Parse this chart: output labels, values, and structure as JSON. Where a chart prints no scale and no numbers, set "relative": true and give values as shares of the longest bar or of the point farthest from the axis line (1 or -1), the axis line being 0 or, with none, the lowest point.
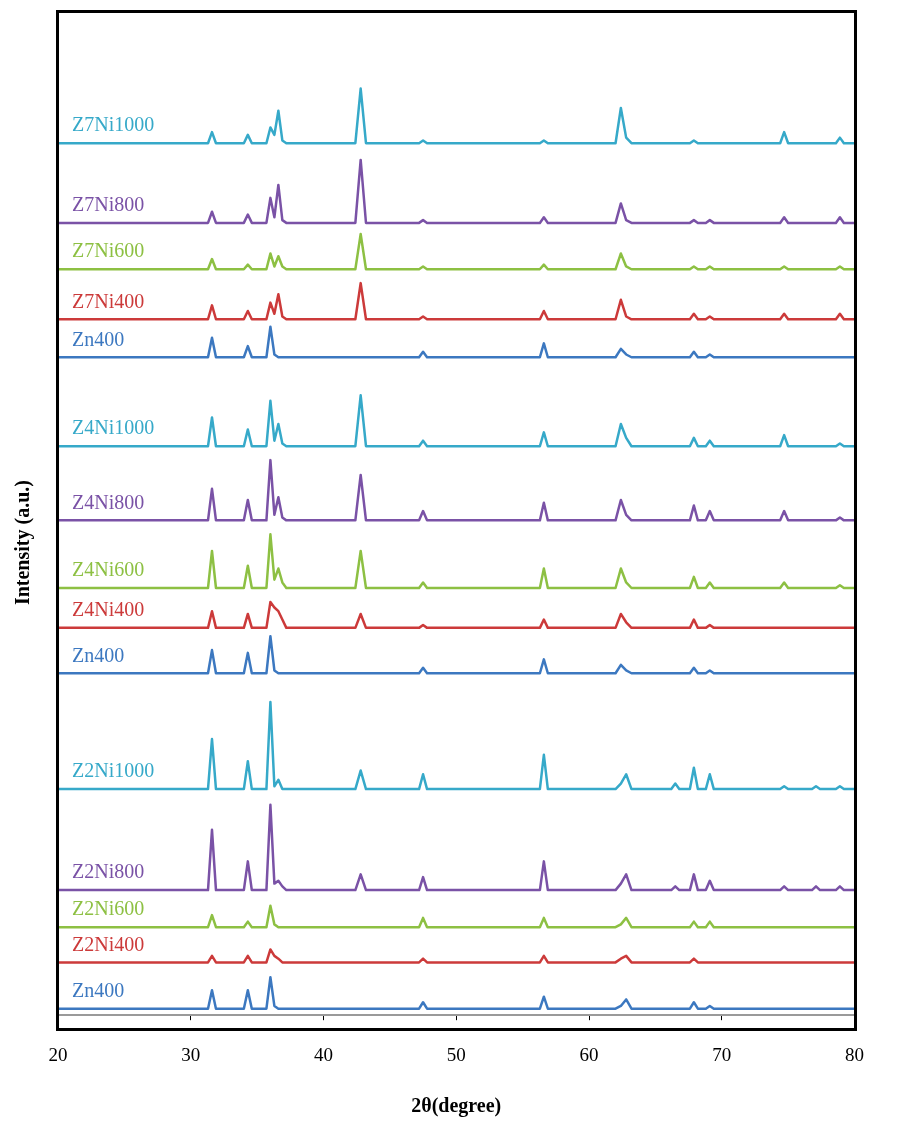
{
  "chart_data": {
    "type": "line",
    "relative": true,
    "xlim": [
      20,
      80
    ],
    "xticks": [
      20,
      30,
      40,
      50,
      60,
      70,
      80
    ],
    "xlabel": "2θ(degree)",
    "ylabel": "Intensity (a.u.)",
    "x": [
      20,
      31.3,
      31.6,
      31.9,
      34.0,
      34.3,
      34.6,
      35.7,
      36.0,
      36.3,
      36.6,
      36.9,
      37.2,
      42.4,
      42.8,
      43.2,
      47.2,
      47.5,
      47.8,
      56.3,
      56.6,
      56.9,
      62.0,
      62.4,
      62.8,
      63.2,
      66.2,
      66.5,
      66.8,
      67.6,
      67.9,
      68.2,
      68.8,
      69.1,
      69.4,
      74.4,
      74.7,
      75.0,
      76.8,
      77.1,
      77.4,
      78.6,
      78.9,
      79.2,
      80
    ],
    "series": [
      {
        "name": "Z7Ni1000",
        "color": "#36a9c9",
        "values": [
          0.941,
          0.941,
          0.953,
          0.941,
          0.941,
          0.95,
          0.941,
          0.941,
          0.958,
          0.95,
          0.976,
          0.944,
          0.941,
          0.941,
          1,
          0.941,
          0.941,
          0.944,
          0.941,
          0.941,
          0.944,
          0.941,
          0.941,
          0.979,
          0.947,
          0.941,
          0.941,
          0.941,
          0.941,
          0.941,
          0.944,
          0.941,
          0.941,
          0.941,
          0.941,
          0.941,
          0.953,
          0.941,
          0.941,
          0.941,
          0.941,
          0.941,
          0.947,
          0.941,
          0.941
        ]
      },
      {
        "name": "Z7Ni800",
        "color": "#7a52a6",
        "values": [
          0.855,
          0.855,
          0.867,
          0.855,
          0.855,
          0.864,
          0.855,
          0.855,
          0.882,
          0.861,
          0.896,
          0.858,
          0.855,
          0.855,
          0.923,
          0.855,
          0.855,
          0.858,
          0.855,
          0.855,
          0.861,
          0.855,
          0.855,
          0.876,
          0.858,
          0.855,
          0.855,
          0.855,
          0.855,
          0.855,
          0.858,
          0.855,
          0.855,
          0.858,
          0.855,
          0.855,
          0.861,
          0.855,
          0.855,
          0.855,
          0.855,
          0.855,
          0.861,
          0.855,
          0.855
        ]
      },
      {
        "name": "Z7Ni600",
        "color": "#8dc043",
        "values": [
          0.805,
          0.805,
          0.816,
          0.805,
          0.805,
          0.81,
          0.805,
          0.805,
          0.822,
          0.808,
          0.819,
          0.808,
          0.805,
          0.805,
          0.843,
          0.805,
          0.805,
          0.808,
          0.805,
          0.805,
          0.81,
          0.805,
          0.805,
          0.822,
          0.808,
          0.805,
          0.805,
          0.805,
          0.805,
          0.805,
          0.808,
          0.805,
          0.805,
          0.808,
          0.805,
          0.805,
          0.808,
          0.805,
          0.805,
          0.805,
          0.805,
          0.805,
          0.808,
          0.805,
          0.805
        ]
      },
      {
        "name": "Z7Ni400",
        "color": "#cc3a3a",
        "values": [
          0.751,
          0.751,
          0.766,
          0.751,
          0.751,
          0.76,
          0.751,
          0.751,
          0.769,
          0.757,
          0.778,
          0.754,
          0.751,
          0.751,
          0.79,
          0.751,
          0.751,
          0.754,
          0.751,
          0.751,
          0.76,
          0.751,
          0.751,
          0.772,
          0.754,
          0.751,
          0.751,
          0.751,
          0.751,
          0.751,
          0.757,
          0.751,
          0.751,
          0.754,
          0.751,
          0.751,
          0.757,
          0.751,
          0.751,
          0.751,
          0.751,
          0.751,
          0.757,
          0.751,
          0.751
        ]
      },
      {
        "name": "Zn400",
        "color": "#3c78c0",
        "values": [
          0.71,
          0.71,
          0.731,
          0.71,
          0.71,
          0.722,
          0.71,
          0.71,
          0.743,
          0.713,
          0.71,
          0.71,
          0.71,
          0.71,
          0.71,
          0.71,
          0.71,
          0.716,
          0.71,
          0.71,
          0.725,
          0.71,
          0.71,
          0.719,
          0.713,
          0.71,
          0.71,
          0.71,
          0.71,
          0.71,
          0.716,
          0.71,
          0.71,
          0.713,
          0.71,
          0.71,
          0.71,
          0.71,
          0.71,
          0.71,
          0.71,
          0.71,
          0.71,
          0.71,
          0.71
        ]
      },
      {
        "name": "Z4Ni1000",
        "color": "#36a9c9",
        "values": [
          0.614,
          0.614,
          0.645,
          0.614,
          0.614,
          0.632,
          0.614,
          0.614,
          0.663,
          0.62,
          0.638,
          0.617,
          0.614,
          0.614,
          0.669,
          0.614,
          0.614,
          0.62,
          0.614,
          0.614,
          0.629,
          0.614,
          0.614,
          0.638,
          0.623,
          0.614,
          0.614,
          0.614,
          0.614,
          0.614,
          0.623,
          0.614,
          0.614,
          0.62,
          0.614,
          0.614,
          0.626,
          0.614,
          0.614,
          0.614,
          0.614,
          0.614,
          0.617,
          0.614,
          0.614
        ]
      },
      {
        "name": "Z4Ni800",
        "color": "#7a52a6",
        "values": [
          0.534,
          0.534,
          0.568,
          0.534,
          0.534,
          0.556,
          0.534,
          0.534,
          0.599,
          0.54,
          0.559,
          0.537,
          0.534,
          0.534,
          0.583,
          0.534,
          0.534,
          0.544,
          0.534,
          0.534,
          0.553,
          0.534,
          0.534,
          0.556,
          0.54,
          0.534,
          0.534,
          0.534,
          0.534,
          0.534,
          0.55,
          0.534,
          0.534,
          0.544,
          0.534,
          0.534,
          0.544,
          0.534,
          0.534,
          0.534,
          0.534,
          0.534,
          0.537,
          0.534,
          0.534
        ]
      },
      {
        "name": "Z4Ni600",
        "color": "#8dc043",
        "values": [
          0.461,
          0.461,
          0.501,
          0.461,
          0.461,
          0.485,
          0.461,
          0.461,
          0.519,
          0.47,
          0.482,
          0.467,
          0.461,
          0.461,
          0.501,
          0.461,
          0.461,
          0.467,
          0.461,
          0.461,
          0.482,
          0.461,
          0.461,
          0.482,
          0.467,
          0.461,
          0.461,
          0.461,
          0.461,
          0.461,
          0.473,
          0.461,
          0.461,
          0.467,
          0.461,
          0.461,
          0.467,
          0.461,
          0.461,
          0.461,
          0.461,
          0.461,
          0.464,
          0.461,
          0.461
        ]
      },
      {
        "name": "Z4Ni400",
        "color": "#cc3a3a",
        "values": [
          0.418,
          0.418,
          0.436,
          0.418,
          0.418,
          0.433,
          0.418,
          0.418,
          0.446,
          0.44,
          0.436,
          0.427,
          0.418,
          0.418,
          0.433,
          0.418,
          0.418,
          0.421,
          0.418,
          0.418,
          0.427,
          0.418,
          0.418,
          0.433,
          0.424,
          0.418,
          0.418,
          0.418,
          0.418,
          0.418,
          0.427,
          0.418,
          0.418,
          0.421,
          0.418,
          0.418,
          0.418,
          0.418,
          0.418,
          0.418,
          0.418,
          0.418,
          0.418,
          0.418,
          0.418
        ]
      },
      {
        "name": "Zn400",
        "color": "#3c78c0",
        "values": [
          0.369,
          0.369,
          0.394,
          0.369,
          0.369,
          0.391,
          0.369,
          0.369,
          0.409,
          0.372,
          0.369,
          0.369,
          0.369,
          0.369,
          0.369,
          0.369,
          0.369,
          0.375,
          0.369,
          0.369,
          0.384,
          0.369,
          0.369,
          0.378,
          0.372,
          0.369,
          0.369,
          0.369,
          0.369,
          0.369,
          0.375,
          0.369,
          0.369,
          0.372,
          0.369,
          0.369,
          0.369,
          0.369,
          0.369,
          0.369,
          0.369,
          0.369,
          0.369,
          0.369,
          0.369
        ]
      },
      {
        "name": "Z2Ni1000",
        "color": "#36a9c9",
        "values": [
          0.244,
          0.244,
          0.298,
          0.244,
          0.244,
          0.274,
          0.244,
          0.244,
          0.338,
          0.247,
          0.254,
          0.244,
          0.244,
          0.244,
          0.264,
          0.244,
          0.244,
          0.26,
          0.244,
          0.244,
          0.281,
          0.244,
          0.244,
          0.25,
          0.26,
          0.244,
          0.244,
          0.25,
          0.244,
          0.244,
          0.267,
          0.244,
          0.244,
          0.26,
          0.244,
          0.244,
          0.247,
          0.244,
          0.244,
          0.247,
          0.244,
          0.244,
          0.247,
          0.244,
          0.244
        ]
      },
      {
        "name": "Z2Ni800",
        "color": "#7a52a6",
        "values": [
          0.135,
          0.135,
          0.2,
          0.135,
          0.135,
          0.166,
          0.135,
          0.135,
          0.227,
          0.142,
          0.145,
          0.139,
          0.135,
          0.135,
          0.152,
          0.135,
          0.135,
          0.149,
          0.135,
          0.135,
          0.166,
          0.135,
          0.135,
          0.142,
          0.152,
          0.135,
          0.135,
          0.139,
          0.135,
          0.135,
          0.152,
          0.135,
          0.135,
          0.145,
          0.135,
          0.135,
          0.139,
          0.135,
          0.135,
          0.139,
          0.135,
          0.135,
          0.139,
          0.135,
          0.135
        ]
      },
      {
        "name": "Z2Ni600",
        "color": "#8dc043",
        "values": [
          0.095,
          0.095,
          0.108,
          0.095,
          0.095,
          0.101,
          0.095,
          0.095,
          0.118,
          0.098,
          0.095,
          0.095,
          0.095,
          0.095,
          0.095,
          0.095,
          0.095,
          0.105,
          0.095,
          0.095,
          0.105,
          0.095,
          0.095,
          0.098,
          0.105,
          0.095,
          0.095,
          0.095,
          0.095,
          0.095,
          0.101,
          0.095,
          0.095,
          0.101,
          0.095,
          0.095,
          0.095,
          0.095,
          0.095,
          0.095,
          0.095,
          0.095,
          0.095,
          0.095,
          0.095
        ]
      },
      {
        "name": "Z2Ni400",
        "color": "#cc3a3a",
        "values": [
          0.057,
          0.057,
          0.064,
          0.057,
          0.057,
          0.064,
          0.057,
          0.057,
          0.071,
          0.064,
          0.061,
          0.057,
          0.057,
          0.057,
          0.057,
          0.057,
          0.057,
          0.061,
          0.057,
          0.057,
          0.064,
          0.057,
          0.057,
          0.061,
          0.064,
          0.057,
          0.057,
          0.057,
          0.057,
          0.057,
          0.061,
          0.057,
          0.057,
          0.057,
          0.057,
          0.057,
          0.057,
          0.057,
          0.057,
          0.057,
          0.057,
          0.057,
          0.057,
          0.057,
          0.057
        ]
      },
      {
        "name": "Zn400",
        "color": "#3c78c0",
        "values": [
          0.007,
          0.007,
          0.027,
          0.007,
          0.007,
          0.027,
          0.007,
          0.007,
          0.041,
          0.01,
          0.007,
          0.007,
          0.007,
          0.007,
          0.007,
          0.007,
          0.007,
          0.014,
          0.007,
          0.007,
          0.02,
          0.007,
          0.007,
          0.01,
          0.017,
          0.007,
          0.007,
          0.007,
          0.007,
          0.007,
          0.014,
          0.007,
          0.007,
          0.01,
          0.007,
          0.007,
          0.007,
          0.007,
          0.007,
          0.007,
          0.007,
          0.007,
          0.007,
          0.007,
          0.007
        ]
      }
    ]
  }
}
